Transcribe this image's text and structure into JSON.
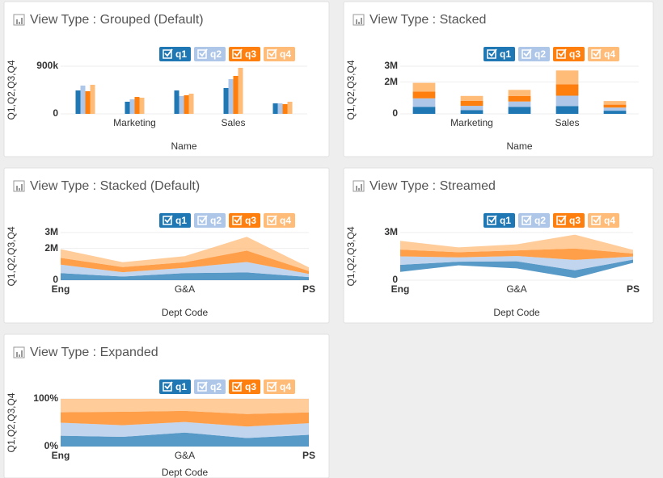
{
  "chart_data": [
    {
      "type": "bar",
      "mode": "grouped",
      "title": "View Type : Grouped (Default)",
      "y_label": "Q1,Q2,Q3,Q4",
      "x_label": "Name",
      "categories": [
        null,
        "Marketing",
        null,
        "Sales",
        null
      ],
      "ylim": [
        0,
        900000
      ],
      "yticks": [
        0,
        {
          "value": 900000,
          "label": "900k"
        }
      ],
      "grid": true,
      "series": [
        {
          "name": "q1",
          "color": "#1f77b4",
          "values": [
            442000,
            229000,
            442000,
            488000,
            198000
          ]
        },
        {
          "name": "q2",
          "color": "#aec7e8",
          "values": [
            534000,
            275000,
            336000,
            656000,
            198000
          ]
        },
        {
          "name": "q3",
          "color": "#ff7f0e",
          "values": [
            427000,
            320000,
            351000,
            717000,
            183000
          ]
        },
        {
          "name": "q4",
          "color": "#ffbb78",
          "values": [
            549000,
            305000,
            381000,
            870000,
            229000
          ]
        }
      ]
    },
    {
      "type": "bar",
      "mode": "stacked",
      "title": "View Type : Stacked",
      "y_label": "Q1,Q2,Q3,Q4",
      "x_label": "Name",
      "categories": [
        null,
        "Marketing",
        null,
        "Sales",
        null
      ],
      "ylim": [
        0,
        3000000
      ],
      "yticks": [
        0,
        {
          "value": 2000000,
          "label": "2M"
        },
        {
          "value": 3000000,
          "label": "3M"
        }
      ],
      "grid": true,
      "series": [
        {
          "name": "q1",
          "color": "#1f77b4",
          "values": [
            442000,
            229000,
            442000,
            488000,
            198000
          ]
        },
        {
          "name": "q2",
          "color": "#aec7e8",
          "values": [
            534000,
            275000,
            336000,
            656000,
            198000
          ]
        },
        {
          "name": "q3",
          "color": "#ff7f0e",
          "values": [
            427000,
            320000,
            351000,
            717000,
            183000
          ]
        },
        {
          "name": "q4",
          "color": "#ffbb78",
          "values": [
            549000,
            305000,
            381000,
            870000,
            229000
          ]
        }
      ]
    },
    {
      "type": "area",
      "mode": "zero",
      "title": "View Type : Stacked (Default)",
      "y_label": "Q1,Q2,Q3,Q4",
      "x_label": "Dept Code",
      "categories": [
        "Eng",
        null,
        "G&A",
        null,
        "PS"
      ],
      "ylim": [
        0,
        3000000
      ],
      "yticks": [
        0,
        {
          "value": 2000000,
          "label": "2M"
        },
        {
          "value": 3000000,
          "label": "3M"
        }
      ],
      "grid": true,
      "series": [
        {
          "name": "q1",
          "color": "#1f77b4",
          "values": [
            442000,
            229000,
            442000,
            488000,
            198000
          ]
        },
        {
          "name": "q2",
          "color": "#aec7e8",
          "values": [
            534000,
            275000,
            336000,
            656000,
            198000
          ]
        },
        {
          "name": "q3",
          "color": "#ff7f0e",
          "values": [
            427000,
            320000,
            351000,
            717000,
            183000
          ]
        },
        {
          "name": "q4",
          "color": "#ffbb78",
          "values": [
            549000,
            305000,
            381000,
            870000,
            229000
          ]
        }
      ]
    },
    {
      "type": "area",
      "mode": "wiggle",
      "title": "View Type : Streamed",
      "y_label": "Q1,Q2,Q3,Q4",
      "x_label": "Dept Code",
      "categories": [
        "Eng",
        null,
        "G&A",
        null,
        "PS"
      ],
      "ylim": [
        0,
        3000000
      ],
      "yticks": [
        0,
        {
          "value": 3000000,
          "label": "3M"
        }
      ],
      "grid": true,
      "series": [
        {
          "name": "q1",
          "color": "#1f77b4",
          "values": [
            442000,
            229000,
            442000,
            488000,
            198000
          ]
        },
        {
          "name": "q2",
          "color": "#aec7e8",
          "values": [
            534000,
            275000,
            336000,
            656000,
            198000
          ]
        },
        {
          "name": "q3",
          "color": "#ff7f0e",
          "values": [
            427000,
            320000,
            351000,
            717000,
            183000
          ]
        },
        {
          "name": "q4",
          "color": "#ffbb78",
          "values": [
            549000,
            305000,
            381000,
            870000,
            229000
          ]
        }
      ]
    },
    {
      "type": "area",
      "mode": "expand",
      "title": "View Type : Expanded",
      "y_label": "Q1,Q2,Q3,Q4",
      "x_label": "Dept Code",
      "categories": [
        "Eng",
        null,
        "G&A",
        null,
        "PS"
      ],
      "ylim": [
        0,
        100
      ],
      "yticks": [
        {
          "value": 0,
          "label": "0%"
        },
        {
          "value": 100,
          "label": "100%"
        }
      ],
      "grid": true,
      "series": [
        {
          "name": "q1",
          "color": "#1f77b4",
          "values": [
            442000,
            229000,
            442000,
            488000,
            198000
          ]
        },
        {
          "name": "q2",
          "color": "#aec7e8",
          "values": [
            534000,
            275000,
            336000,
            656000,
            198000
          ]
        },
        {
          "name": "q3",
          "color": "#ff7f0e",
          "values": [
            427000,
            320000,
            351000,
            717000,
            183000
          ]
        },
        {
          "name": "q4",
          "color": "#ffbb78",
          "values": [
            549000,
            305000,
            381000,
            870000,
            229000
          ]
        }
      ]
    }
  ]
}
